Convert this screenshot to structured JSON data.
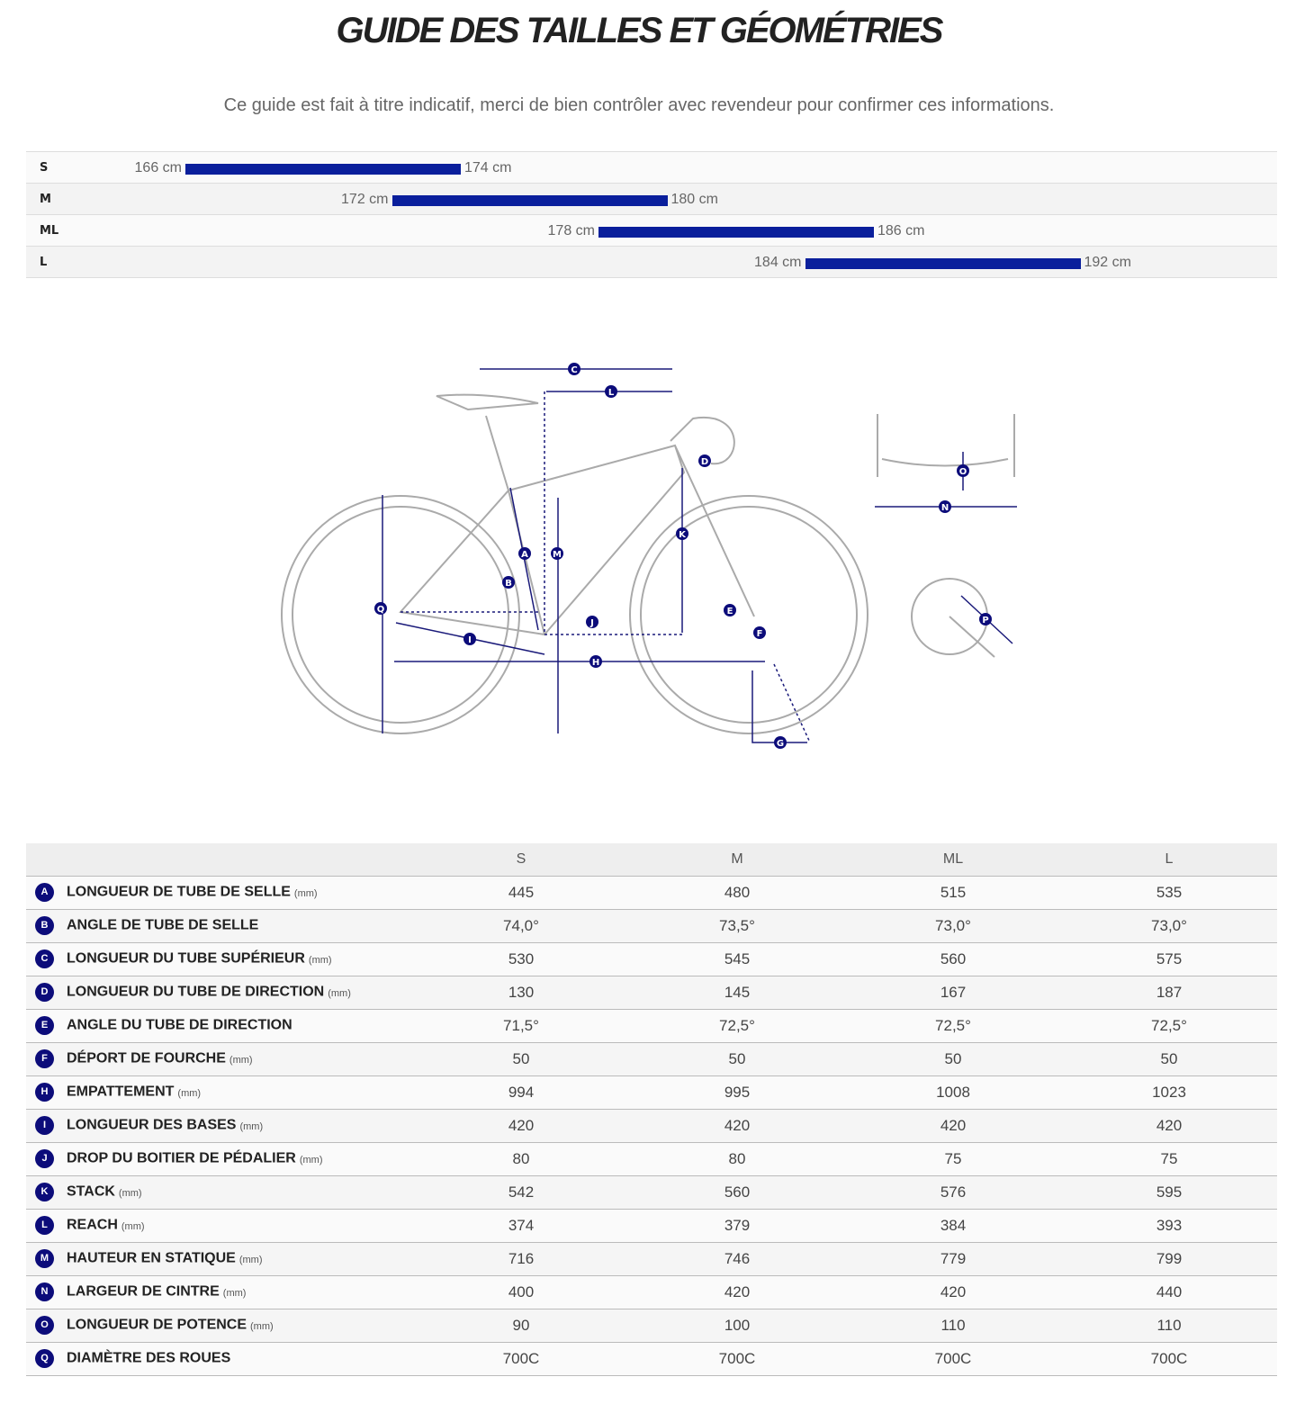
{
  "title": "GUIDE DES TAILLES ET GÉOMÉTRIES",
  "subtitle": "Ce guide est fait à titre indicatif, merci de bien contrôler avec revendeur pour confirmer ces informations.",
  "accent": "#0a1f9c",
  "size_chart": [
    {
      "size": "S",
      "min": 166,
      "max": 174,
      "min_label": "166 cm",
      "max_label": "174 cm"
    },
    {
      "size": "M",
      "min": 172,
      "max": 180,
      "min_label": "172 cm",
      "max_label": "180 cm"
    },
    {
      "size": "ML",
      "min": 178,
      "max": 186,
      "min_label": "178 cm",
      "max_label": "186 cm"
    },
    {
      "size": "L",
      "min": 184,
      "max": 192,
      "min_label": "184 cm",
      "max_label": "192 cm"
    }
  ],
  "diagram_labels": [
    "A",
    "B",
    "C",
    "D",
    "E",
    "F",
    "G",
    "H",
    "I",
    "J",
    "K",
    "L",
    "M",
    "N",
    "O",
    "P",
    "Q"
  ],
  "table": {
    "columns": [
      "S",
      "M",
      "ML",
      "L"
    ],
    "rows": [
      {
        "letter": "A",
        "name": "LONGUEUR DE TUBE DE SELLE",
        "unit": "(mm)",
        "values": [
          "445",
          "480",
          "515",
          "535"
        ]
      },
      {
        "letter": "B",
        "name": "ANGLE DE TUBE DE SELLE",
        "unit": "",
        "values": [
          "74,0°",
          "73,5°",
          "73,0°",
          "73,0°"
        ]
      },
      {
        "letter": "C",
        "name": "LONGUEUR DU TUBE SUPÉRIEUR",
        "unit": "(mm)",
        "values": [
          "530",
          "545",
          "560",
          "575"
        ]
      },
      {
        "letter": "D",
        "name": "LONGUEUR DU TUBE DE DIRECTION",
        "unit": "(mm)",
        "values": [
          "130",
          "145",
          "167",
          "187"
        ]
      },
      {
        "letter": "E",
        "name": "ANGLE DU TUBE DE DIRECTION",
        "unit": "",
        "values": [
          "71,5°",
          "72,5°",
          "72,5°",
          "72,5°"
        ]
      },
      {
        "letter": "F",
        "name": "DÉPORT DE FOURCHE",
        "unit": "(mm)",
        "values": [
          "50",
          "50",
          "50",
          "50"
        ]
      },
      {
        "letter": "H",
        "name": "EMPATTEMENT",
        "unit": "(mm)",
        "values": [
          "994",
          "995",
          "1008",
          "1023"
        ]
      },
      {
        "letter": "I",
        "name": "LONGUEUR DES BASES",
        "unit": "(mm)",
        "values": [
          "420",
          "420",
          "420",
          "420"
        ]
      },
      {
        "letter": "J",
        "name": "DROP DU BOITIER DE PÉDALIER",
        "unit": "(mm)",
        "values": [
          "80",
          "80",
          "75",
          "75"
        ]
      },
      {
        "letter": "K",
        "name": "STACK",
        "unit": "(mm)",
        "values": [
          "542",
          "560",
          "576",
          "595"
        ]
      },
      {
        "letter": "L",
        "name": "REACH",
        "unit": "(mm)",
        "values": [
          "374",
          "379",
          "384",
          "393"
        ]
      },
      {
        "letter": "M",
        "name": "HAUTEUR EN STATIQUE",
        "unit": "(mm)",
        "values": [
          "716",
          "746",
          "779",
          "799"
        ]
      },
      {
        "letter": "N",
        "name": "LARGEUR DE CINTRE",
        "unit": "(mm)",
        "values": [
          "400",
          "420",
          "420",
          "440"
        ]
      },
      {
        "letter": "O",
        "name": "LONGUEUR DE POTENCE",
        "unit": "(mm)",
        "values": [
          "90",
          "100",
          "110",
          "110"
        ]
      },
      {
        "letter": "Q",
        "name": "DIAMÈTRE DES ROUES",
        "unit": "",
        "values": [
          "700C",
          "700C",
          "700C",
          "700C"
        ]
      }
    ]
  }
}
